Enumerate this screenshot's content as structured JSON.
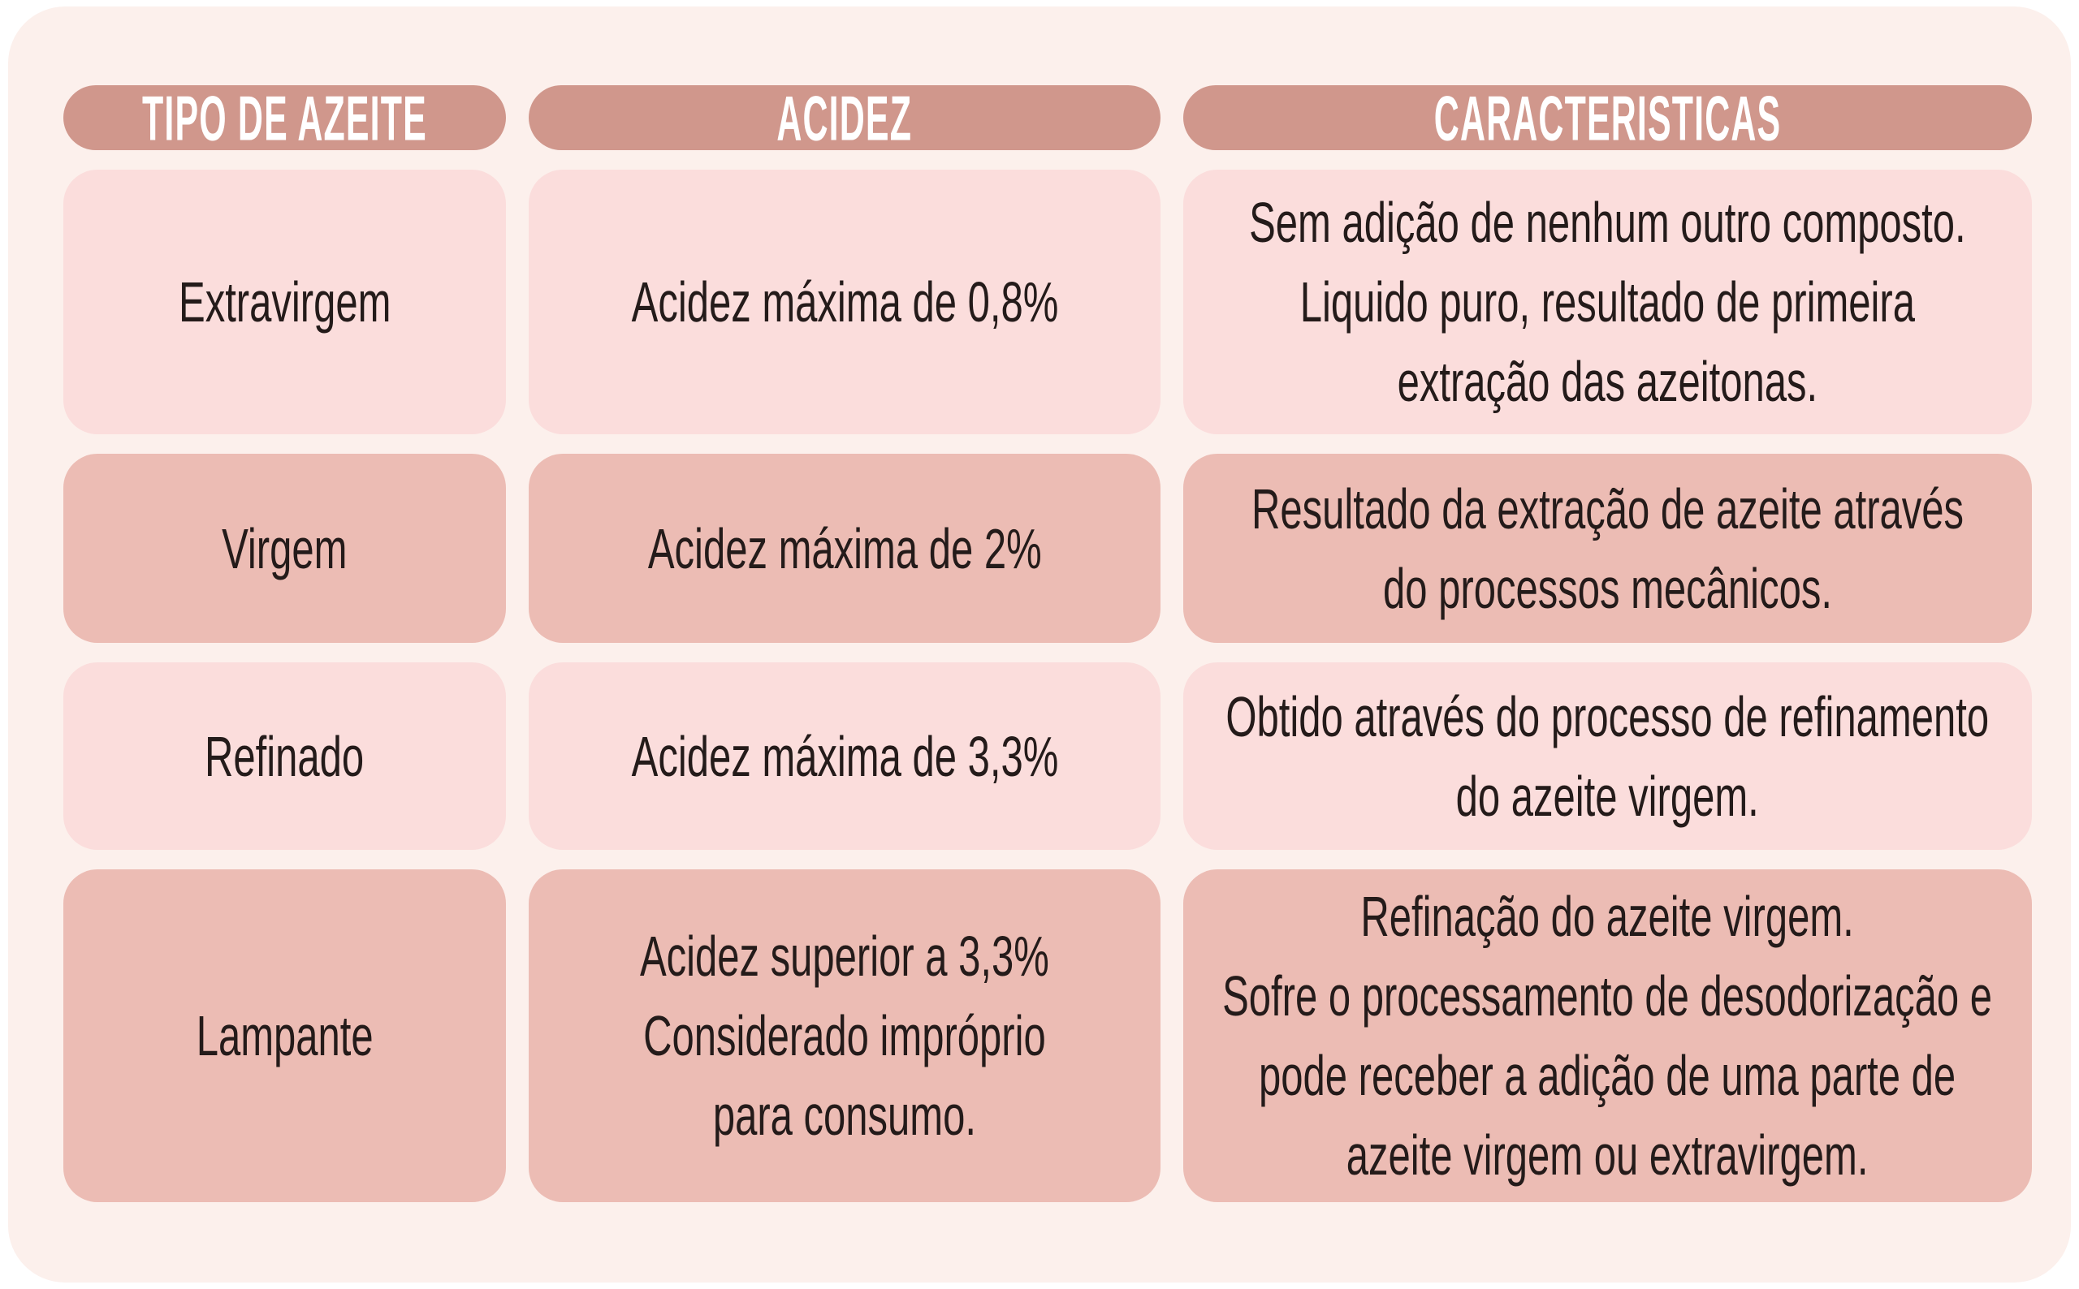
{
  "colors": {
    "page_bg": "#ffffff",
    "card_bg": "#fcf0ec",
    "header_bg": "#d0978c",
    "header_text": "#ffffff",
    "row_light": "#fbdddc",
    "row_dark": "#ecbcb4",
    "text": "#241b1a"
  },
  "table": {
    "headers": [
      "TIPO DE AZEITE",
      "ACIDEZ",
      "CARACTERISTICAS"
    ],
    "rows": [
      {
        "shade": "light",
        "tipo": "Extravirgem",
        "acidez": "Acidez máxima de 0,8%",
        "caracteristicas": "Sem adição de nenhum outro composto.\nLiquido puro, resultado de primeira\nextração das azeitonas."
      },
      {
        "shade": "dark",
        "tipo": "Virgem",
        "acidez": "Acidez máxima de 2%",
        "caracteristicas": "Resultado da extração de azeite através\ndo processos mecânicos."
      },
      {
        "shade": "light",
        "tipo": "Refinado",
        "acidez": "Acidez máxima de 3,3%",
        "caracteristicas": "Obtido através do processo de refinamento\ndo azeite virgem."
      },
      {
        "shade": "dark",
        "tipo": "Lampante",
        "acidez": "Acidez superior a 3,3%\nConsiderado impróprio\npara consumo.",
        "caracteristicas": "Refinação do azeite virgem.\nSofre o processamento de desodorização e\npode receber a adição de uma parte de\nazeite virgem ou extravirgem."
      }
    ]
  }
}
